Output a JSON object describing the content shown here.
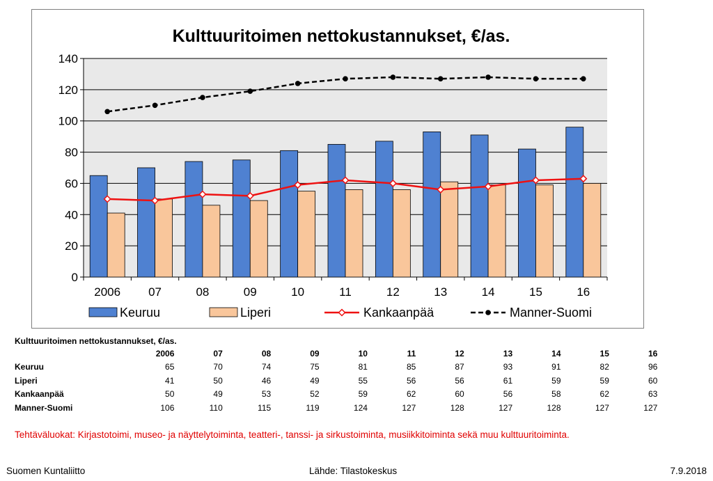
{
  "chart_data": {
    "type": "bar",
    "title": "Kulttuuritoimen nettokustannukset, €/as.",
    "categories": [
      "2006",
      "07",
      "08",
      "09",
      "10",
      "11",
      "12",
      "13",
      "14",
      "15",
      "16"
    ],
    "ylim": [
      0,
      140
    ],
    "yticks": [
      0,
      20,
      40,
      60,
      80,
      100,
      120,
      140
    ],
    "grid": true,
    "legend_position": "bottom",
    "series": [
      {
        "name": "Keuruu",
        "type": "bar",
        "color": "#4f81d1",
        "values": [
          65,
          70,
          74,
          75,
          81,
          85,
          87,
          93,
          91,
          82,
          96
        ]
      },
      {
        "name": "Liperi",
        "type": "bar",
        "color": "#f9c69b",
        "values": [
          41,
          50,
          46,
          49,
          55,
          56,
          56,
          61,
          59,
          59,
          60
        ]
      },
      {
        "name": "Kankaanpää",
        "type": "line",
        "color": "#ee1111",
        "marker": "diamond-open",
        "values": [
          50,
          49,
          53,
          52,
          59,
          62,
          60,
          56,
          58,
          62,
          63
        ]
      },
      {
        "name": "Manner-Suomi",
        "type": "line",
        "color": "#000000",
        "dash": true,
        "marker": "circle-filled",
        "values": [
          106,
          110,
          115,
          119,
          124,
          127,
          128,
          127,
          128,
          127,
          127
        ]
      }
    ]
  },
  "table": {
    "title": "Kulttuuritoimen nettokustannukset, €/as.",
    "columns": [
      "2006",
      "07",
      "08",
      "09",
      "10",
      "11",
      "12",
      "13",
      "14",
      "15",
      "16"
    ],
    "rows": [
      {
        "label": "Keuruu",
        "values": [
          "65",
          "70",
          "74",
          "75",
          "81",
          "85",
          "87",
          "93",
          "91",
          "82",
          "96"
        ]
      },
      {
        "label": "Liperi",
        "values": [
          "41",
          "50",
          "46",
          "49",
          "55",
          "56",
          "56",
          "61",
          "59",
          "59",
          "60"
        ]
      },
      {
        "label": "Kankaanpää",
        "values": [
          "50",
          "49",
          "53",
          "52",
          "59",
          "62",
          "60",
          "56",
          "58",
          "62",
          "63"
        ]
      },
      {
        "label": "Manner-Suomi",
        "values": [
          "106",
          "110",
          "115",
          "119",
          "124",
          "127",
          "128",
          "127",
          "128",
          "127",
          "127"
        ]
      }
    ]
  },
  "note": "Tehtäväluokat: Kirjastotoimi, museo- ja näyttelytoiminta, teatteri-, tanssi- ja sirkustoiminta, musiikkitoiminta sekä muu kulttuuritoiminta.",
  "footer": {
    "left": "Suomen Kuntaliitto",
    "center": "Lähde: Tilastokeskus",
    "right": "7.9.2018"
  }
}
